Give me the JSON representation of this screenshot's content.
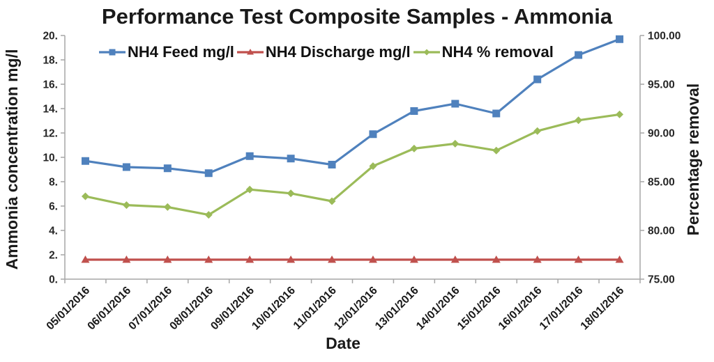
{
  "chart_data": {
    "type": "line",
    "title": "Performance Test Composite Samples - Ammonia",
    "x_axis": {
      "title": "Date",
      "categories": [
        "05/01/2016",
        "06/01/2016",
        "07/01/2016",
        "08/01/2016",
        "09/01/2016",
        "10/01/2016",
        "11/01/2016",
        "12/01/2016",
        "13/01/2016",
        "14/01/2016",
        "15/01/2016",
        "16/01/2016",
        "17/01/2016",
        "18/01/2016"
      ]
    },
    "y_axis_left": {
      "title": "Ammonia concentration mg/l",
      "min": 0,
      "max": 20,
      "tick_values": [
        0,
        2,
        4,
        6,
        8,
        10,
        12,
        14,
        16,
        18,
        20
      ],
      "tick_labels": [
        "0.",
        "2.",
        "4.",
        "6.",
        "8.",
        "10.",
        "12.",
        "14.",
        "16.",
        "18.",
        "20."
      ]
    },
    "y_axis_right": {
      "title": "Percentage removal",
      "min": 75,
      "max": 100,
      "tick_values": [
        75,
        80,
        85,
        90,
        95,
        100
      ],
      "tick_labels": [
        "75.00",
        "80.00",
        "85.00",
        "90.00",
        "95.00",
        "100.00"
      ]
    },
    "legend_position": "top-inside-horizontal",
    "grid": false,
    "series": [
      {
        "name": "NH4 Feed mg/l",
        "axis": "left",
        "color": "#4F81BD",
        "marker": "square",
        "values": [
          9.7,
          9.2,
          9.1,
          8.7,
          10.1,
          9.9,
          9.4,
          11.9,
          13.8,
          14.4,
          13.6,
          16.4,
          18.4,
          19.7
        ]
      },
      {
        "name": "NH4 Discharge mg/l",
        "axis": "left",
        "color": "#C0504D",
        "marker": "triangle",
        "values": [
          1.6,
          1.6,
          1.6,
          1.6,
          1.6,
          1.6,
          1.6,
          1.6,
          1.6,
          1.6,
          1.6,
          1.6,
          1.6,
          1.6
        ]
      },
      {
        "name": "NH4 % removal",
        "axis": "right",
        "color": "#9BBB59",
        "marker": "diamond",
        "values": [
          83.5,
          82.6,
          82.4,
          81.6,
          84.2,
          83.8,
          83.0,
          86.6,
          88.4,
          88.9,
          88.2,
          90.2,
          91.3,
          91.9
        ]
      }
    ],
    "colors": {
      "axis_line": "#A6A6A6",
      "text": "#1A1A1A",
      "background": "#FFFFFF"
    }
  }
}
